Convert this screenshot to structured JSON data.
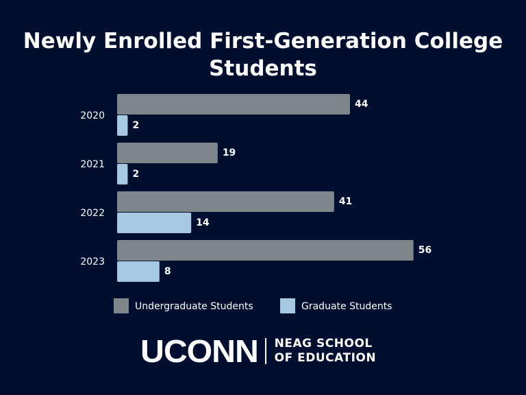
{
  "chart_data": {
    "type": "bar",
    "orientation": "horizontal",
    "title": "Newly Enrolled First-Generation College Students",
    "categories": [
      "2020",
      "2021",
      "2022",
      "2023"
    ],
    "series": [
      {
        "name": "Undergraduate Students",
        "values": [
          44,
          19,
          41,
          56
        ],
        "color": "#7f868b"
      },
      {
        "name": "Graduate Students",
        "values": [
          2,
          2,
          14,
          8
        ],
        "color": "#a7c8e3"
      }
    ],
    "legend": "bottom",
    "grid": false,
    "data_labels": true
  },
  "logo": {
    "brand": "UCONN",
    "school_line1": "NEAG SCHOOL",
    "school_line2": "OF EDUCATION"
  },
  "colors": {
    "background": "#000e2f"
  }
}
